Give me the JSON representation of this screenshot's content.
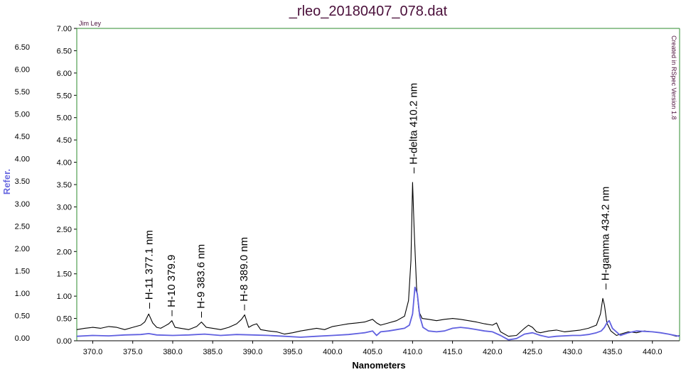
{
  "chart_data": {
    "type": "line",
    "title": "_rleo_20180407_078.dat",
    "xlabel": "Nanometers",
    "ylabel": "Refer.",
    "author": "Jim Ley",
    "watermark": "Created in RSpec Version 1.8",
    "xlim": [
      368.0,
      443.4
    ],
    "ylim": [
      0,
      7.0
    ],
    "x_ticks": [
      "370.0",
      "375.0",
      "380.0",
      "385.0",
      "390.0",
      "395.0",
      "400.0",
      "405.0",
      "410.0",
      "415.0",
      "420.0",
      "425.0",
      "430.0",
      "435.0",
      "440.0"
    ],
    "y_ticks_inner": [
      "0.00",
      "0.50",
      "1.00",
      "1.50",
      "2.00",
      "2.50",
      "3.00",
      "3.50",
      "4.00",
      "4.50",
      "5.00",
      "5.50",
      "6.00",
      "6.50",
      "7.00"
    ],
    "y_ticks_outer": [
      "0.00",
      "0.50",
      "1.00",
      "1.50",
      "2.00",
      "2.50",
      "3.00",
      "3.50",
      "4.00",
      "4.50",
      "5.00",
      "5.50",
      "6.00",
      "6.50"
    ],
    "colors": {
      "series_black": "#000000",
      "series_blue": "#6060e0",
      "frame": "#2e8b2e",
      "title": "#4a0f3a",
      "ylabel": "#6a6ae0"
    },
    "series": [
      {
        "color": "black",
        "x": [
          368.0,
          369.0,
          370.0,
          371.0,
          372.0,
          373.0,
          374.0,
          375.0,
          376.0,
          376.5,
          377.0,
          377.5,
          378.0,
          378.5,
          379.0,
          379.5,
          379.9,
          380.3,
          381.0,
          382.0,
          383.0,
          383.6,
          384.2,
          385.0,
          386.0,
          387.0,
          388.0,
          388.6,
          389.0,
          389.5,
          390.0,
          390.5,
          391.0,
          392.0,
          393.0,
          394.0,
          395.0,
          396.0,
          397.0,
          398.0,
          399.0,
          400.0,
          401.0,
          402.0,
          403.0,
          404.0,
          405.0,
          405.5,
          406.0,
          407.0,
          408.0,
          409.0,
          409.5,
          409.8,
          410.0,
          410.2,
          410.5,
          410.8,
          411.2,
          412.0,
          413.0,
          414.0,
          415.0,
          416.0,
          417.0,
          418.0,
          419.0,
          420.0,
          420.5,
          421.0,
          422.0,
          423.0,
          424.0,
          424.5,
          425.0,
          425.5,
          426.0,
          427.0,
          428.0,
          429.0,
          430.0,
          431.0,
          432.0,
          433.0,
          433.5,
          433.8,
          434.0,
          434.3,
          434.8,
          435.5,
          436.0,
          437.0,
          438.0,
          439.0,
          440.0,
          441.0,
          442.0,
          443.0,
          443.4
        ],
        "y": [
          0.25,
          0.28,
          0.3,
          0.28,
          0.32,
          0.3,
          0.25,
          0.3,
          0.35,
          0.42,
          0.6,
          0.4,
          0.3,
          0.28,
          0.33,
          0.38,
          0.45,
          0.3,
          0.28,
          0.25,
          0.32,
          0.42,
          0.3,
          0.28,
          0.25,
          0.3,
          0.38,
          0.48,
          0.58,
          0.3,
          0.35,
          0.38,
          0.25,
          0.22,
          0.2,
          0.15,
          0.18,
          0.22,
          0.25,
          0.28,
          0.25,
          0.32,
          0.35,
          0.38,
          0.4,
          0.42,
          0.48,
          0.4,
          0.35,
          0.4,
          0.45,
          0.55,
          0.9,
          1.8,
          3.55,
          2.5,
          1.2,
          0.65,
          0.5,
          0.48,
          0.45,
          0.48,
          0.5,
          0.48,
          0.45,
          0.42,
          0.38,
          0.35,
          0.4,
          0.2,
          0.1,
          0.12,
          0.28,
          0.35,
          0.3,
          0.2,
          0.18,
          0.22,
          0.24,
          0.2,
          0.22,
          0.24,
          0.28,
          0.35,
          0.6,
          0.95,
          0.8,
          0.4,
          0.22,
          0.12,
          0.15,
          0.2,
          0.18,
          0.22,
          0.2,
          0.18,
          0.15,
          0.1,
          0.12
        ]
      },
      {
        "color": "blue",
        "x": [
          368.0,
          370.0,
          372.0,
          374.0,
          376.0,
          377.0,
          378.0,
          380.0,
          382.0,
          384.0,
          386.0,
          388.0,
          390.0,
          392.0,
          394.0,
          396.0,
          398.0,
          400.0,
          402.0,
          404.0,
          405.0,
          405.5,
          406.0,
          407.0,
          408.0,
          409.0,
          409.6,
          410.0,
          410.3,
          410.6,
          410.9,
          411.3,
          412.0,
          413.0,
          414.0,
          415.0,
          416.0,
          417.0,
          418.0,
          419.0,
          420.0,
          421.0,
          422.0,
          423.0,
          424.0,
          425.0,
          426.0,
          427.0,
          428.0,
          430.0,
          431.0,
          432.0,
          433.0,
          433.6,
          434.0,
          434.3,
          434.6,
          435.0,
          436.0,
          437.0,
          438.0,
          440.0,
          441.0,
          442.0,
          443.4
        ],
        "y": [
          0.1,
          0.12,
          0.11,
          0.13,
          0.14,
          0.16,
          0.13,
          0.12,
          0.13,
          0.15,
          0.12,
          0.14,
          0.13,
          0.12,
          0.1,
          0.08,
          0.1,
          0.12,
          0.14,
          0.18,
          0.22,
          0.12,
          0.2,
          0.22,
          0.25,
          0.28,
          0.35,
          0.6,
          1.2,
          1.05,
          0.55,
          0.3,
          0.22,
          0.2,
          0.22,
          0.28,
          0.3,
          0.28,
          0.25,
          0.22,
          0.2,
          0.12,
          0.02,
          0.05,
          0.15,
          0.18,
          0.12,
          0.08,
          0.1,
          0.12,
          0.12,
          0.14,
          0.18,
          0.22,
          0.3,
          0.4,
          0.45,
          0.28,
          0.12,
          0.18,
          0.22,
          0.2,
          0.18,
          0.15,
          0.1
        ]
      }
    ],
    "annotations": [
      {
        "label": "H-11 377.1 nm",
        "x": 377.1,
        "y": 0.72
      },
      {
        "label": "H-10 379.9",
        "x": 379.9,
        "y": 0.55
      },
      {
        "label": "H-9 383.6 nm",
        "x": 383.6,
        "y": 0.52
      },
      {
        "label": "H-8 389.0 nm",
        "x": 389.0,
        "y": 0.68
      },
      {
        "label": "H-delta 410.2 nm",
        "x": 410.2,
        "y": 3.75
      },
      {
        "label": "H-gamma 434.2 nm",
        "x": 434.2,
        "y": 1.15
      }
    ]
  }
}
